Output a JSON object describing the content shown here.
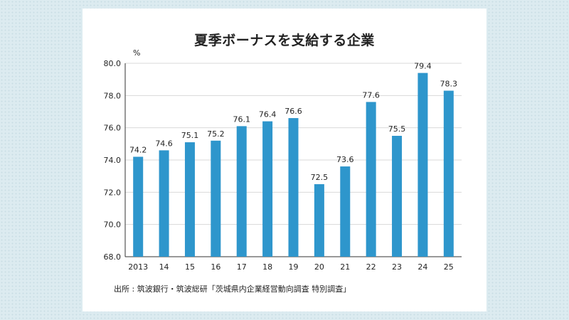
{
  "chart_data": {
    "type": "bar",
    "title": "夏季ボーナスを支給する企業",
    "unit": "%",
    "categories": [
      "2013",
      "14",
      "15",
      "16",
      "17",
      "18",
      "19",
      "20",
      "21",
      "22",
      "23",
      "24",
      "25"
    ],
    "values": [
      74.2,
      74.6,
      75.1,
      75.2,
      76.1,
      76.4,
      76.6,
      72.5,
      73.6,
      77.6,
      75.5,
      79.4,
      78.3
    ],
    "ylim": [
      68.0,
      80.0
    ],
    "yticks": [
      "68.0",
      "70.0",
      "72.0",
      "74.0",
      "76.0",
      "78.0",
      "80.0"
    ],
    "grid": true,
    "bar_color": "#2e96cc",
    "source": "出所 : 筑波銀行・筑波総研「茨城県内企業経営動向調査 特別調査」"
  }
}
